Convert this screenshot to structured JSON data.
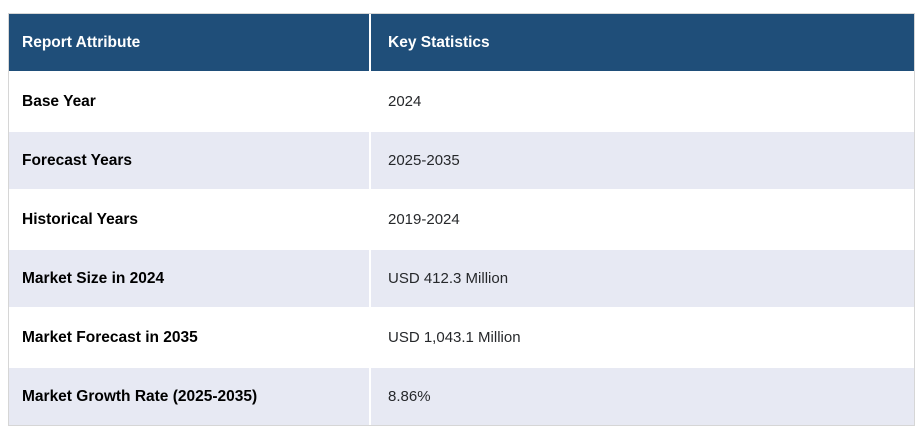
{
  "chart_data": {
    "type": "table",
    "columns": [
      "Report Attribute",
      "Key Statistics"
    ],
    "rows": [
      [
        "Base Year",
        "2024"
      ],
      [
        "Forecast Years",
        "2025-2035"
      ],
      [
        "Historical Years",
        "2019-2024"
      ],
      [
        "Market Size in 2024",
        "USD 412.3 Million"
      ],
      [
        "Market Forecast in 2035",
        "USD 1,043.1 Million"
      ],
      [
        "Market Growth Rate (2025-2035)",
        "8.86%"
      ]
    ]
  },
  "colors": {
    "header_bg": "#1F4E79",
    "header_text": "#FFFFFF",
    "row_odd_bg": "#FFFFFF",
    "row_even_bg": "#E7E9F3",
    "grid_line": "#FFFFFF",
    "outer_border": "#D6D6D6",
    "attribute_text": "#000000",
    "value_text": "#26282B"
  }
}
